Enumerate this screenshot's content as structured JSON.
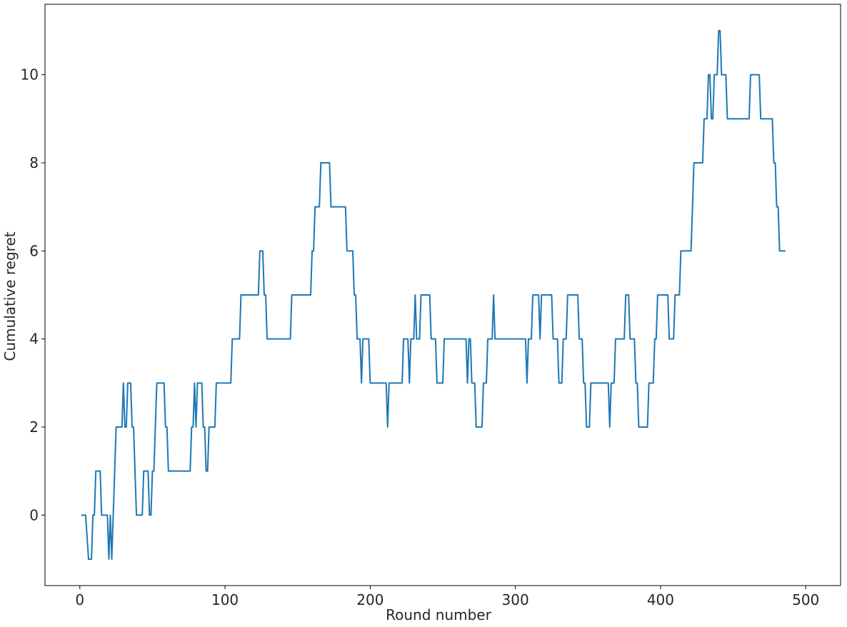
{
  "chart_data": {
    "type": "line",
    "title": "",
    "xlabel": "Round number",
    "ylabel": "Cumulative regret",
    "xlim": [
      -24,
      524
    ],
    "ylim": [
      -1.6,
      11.6
    ],
    "xticks": [
      0,
      100,
      200,
      300,
      400,
      500
    ],
    "yticks": [
      0,
      2,
      4,
      6,
      8,
      10
    ],
    "grid": false,
    "series": [
      {
        "color": "#1f77b4",
        "points": [
          [
            1,
            0
          ],
          [
            4,
            0
          ],
          [
            6,
            -1
          ],
          [
            8,
            -1
          ],
          [
            9,
            0
          ],
          [
            10,
            0
          ],
          [
            11,
            1
          ],
          [
            13,
            1
          ],
          [
            14,
            1
          ],
          [
            15,
            0
          ],
          [
            18,
            0
          ],
          [
            19,
            0
          ],
          [
            20,
            -1
          ],
          [
            21,
            0
          ],
          [
            22,
            -1
          ],
          [
            23,
            0
          ],
          [
            24,
            1
          ],
          [
            25,
            2
          ],
          [
            29,
            2
          ],
          [
            30,
            3
          ],
          [
            31,
            2
          ],
          [
            32,
            2
          ],
          [
            33,
            3
          ],
          [
            35,
            3
          ],
          [
            36,
            2
          ],
          [
            37,
            2
          ],
          [
            38,
            1
          ],
          [
            39,
            0
          ],
          [
            43,
            0
          ],
          [
            44,
            1
          ],
          [
            47,
            1
          ],
          [
            48,
            0
          ],
          [
            49,
            0
          ],
          [
            50,
            1
          ],
          [
            51,
            1
          ],
          [
            52,
            2
          ],
          [
            53,
            3
          ],
          [
            58,
            3
          ],
          [
            59,
            2
          ],
          [
            60,
            2
          ],
          [
            61,
            1
          ],
          [
            76,
            1
          ],
          [
            77,
            2
          ],
          [
            78,
            2
          ],
          [
            79,
            3
          ],
          [
            80,
            2
          ],
          [
            81,
            3
          ],
          [
            84,
            3
          ],
          [
            85,
            2
          ],
          [
            86,
            2
          ],
          [
            87,
            1
          ],
          [
            88,
            1
          ],
          [
            89,
            2
          ],
          [
            93,
            2
          ],
          [
            94,
            3
          ],
          [
            104,
            3
          ],
          [
            105,
            4
          ],
          [
            110,
            4
          ],
          [
            111,
            5
          ],
          [
            123,
            5
          ],
          [
            124,
            6
          ],
          [
            126,
            6
          ],
          [
            127,
            5
          ],
          [
            128,
            5
          ],
          [
            129,
            4
          ],
          [
            145,
            4
          ],
          [
            146,
            5
          ],
          [
            159,
            5
          ],
          [
            160,
            6
          ],
          [
            161,
            6
          ],
          [
            162,
            7
          ],
          [
            165,
            7
          ],
          [
            166,
            8
          ],
          [
            172,
            8
          ],
          [
            173,
            7
          ],
          [
            183,
            7
          ],
          [
            184,
            6
          ],
          [
            188,
            6
          ],
          [
            189,
            5
          ],
          [
            190,
            5
          ],
          [
            191,
            4
          ],
          [
            193,
            4
          ],
          [
            194,
            3
          ],
          [
            195,
            4
          ],
          [
            199,
            4
          ],
          [
            200,
            3
          ],
          [
            211,
            3
          ],
          [
            212,
            2
          ],
          [
            213,
            3
          ],
          [
            222,
            3
          ],
          [
            223,
            4
          ],
          [
            226,
            4
          ],
          [
            227,
            3
          ],
          [
            228,
            4
          ],
          [
            230,
            4
          ],
          [
            231,
            5
          ],
          [
            232,
            4
          ],
          [
            234,
            4
          ],
          [
            235,
            5
          ],
          [
            241,
            5
          ],
          [
            242,
            4
          ],
          [
            245,
            4
          ],
          [
            246,
            3
          ],
          [
            250,
            3
          ],
          [
            251,
            4
          ],
          [
            266,
            4
          ],
          [
            267,
            3
          ],
          [
            268,
            4
          ],
          [
            269,
            4
          ],
          [
            270,
            3
          ],
          [
            272,
            3
          ],
          [
            273,
            2
          ],
          [
            277,
            2
          ],
          [
            278,
            3
          ],
          [
            280,
            3
          ],
          [
            281,
            4
          ],
          [
            284,
            4
          ],
          [
            285,
            5
          ],
          [
            286,
            4
          ],
          [
            307,
            4
          ],
          [
            308,
            3
          ],
          [
            309,
            4
          ],
          [
            311,
            4
          ],
          [
            312,
            5
          ],
          [
            316,
            5
          ],
          [
            317,
            4
          ],
          [
            318,
            5
          ],
          [
            325,
            5
          ],
          [
            326,
            4
          ],
          [
            329,
            4
          ],
          [
            330,
            3
          ],
          [
            332,
            3
          ],
          [
            333,
            4
          ],
          [
            335,
            4
          ],
          [
            336,
            5
          ],
          [
            343,
            5
          ],
          [
            344,
            4
          ],
          [
            346,
            4
          ],
          [
            347,
            3
          ],
          [
            348,
            3
          ],
          [
            349,
            2
          ],
          [
            351,
            2
          ],
          [
            352,
            3
          ],
          [
            364,
            3
          ],
          [
            365,
            2
          ],
          [
            366,
            3
          ],
          [
            368,
            3
          ],
          [
            369,
            4
          ],
          [
            375,
            4
          ],
          [
            376,
            5
          ],
          [
            378,
            5
          ],
          [
            379,
            4
          ],
          [
            382,
            4
          ],
          [
            383,
            3
          ],
          [
            384,
            3
          ],
          [
            385,
            2
          ],
          [
            391,
            2
          ],
          [
            392,
            3
          ],
          [
            395,
            3
          ],
          [
            396,
            4
          ],
          [
            397,
            4
          ],
          [
            398,
            5
          ],
          [
            405,
            5
          ],
          [
            406,
            4
          ],
          [
            409,
            4
          ],
          [
            410,
            5
          ],
          [
            413,
            5
          ],
          [
            414,
            6
          ],
          [
            421,
            6
          ],
          [
            422,
            7
          ],
          [
            423,
            8
          ],
          [
            429,
            8
          ],
          [
            430,
            9
          ],
          [
            432,
            9
          ],
          [
            433,
            10
          ],
          [
            434,
            10
          ],
          [
            435,
            9
          ],
          [
            436,
            9
          ],
          [
            437,
            10
          ],
          [
            439,
            10
          ],
          [
            440,
            11
          ],
          [
            441,
            11
          ],
          [
            442,
            10
          ],
          [
            445,
            10
          ],
          [
            446,
            9
          ],
          [
            461,
            9
          ],
          [
            462,
            10
          ],
          [
            468,
            10
          ],
          [
            469,
            9
          ],
          [
            477,
            9
          ],
          [
            478,
            8
          ],
          [
            479,
            8
          ],
          [
            480,
            7
          ],
          [
            481,
            7
          ],
          [
            482,
            6
          ],
          [
            486,
            6
          ]
        ]
      }
    ]
  }
}
